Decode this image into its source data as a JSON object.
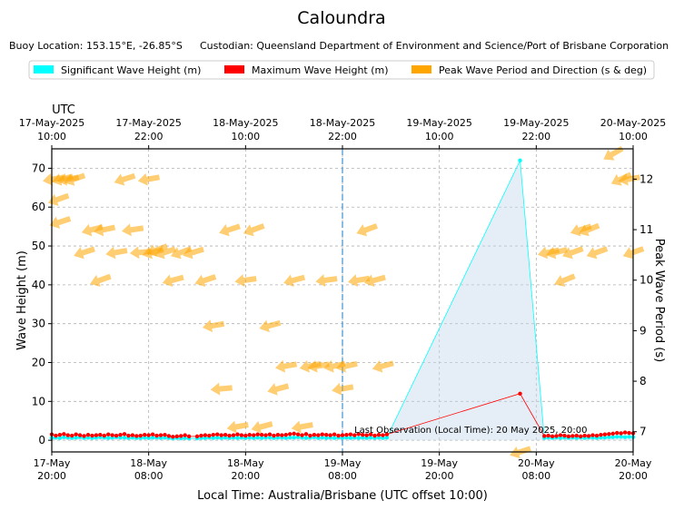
{
  "chart_data": {
    "type": "line",
    "title": "Caloundra",
    "subtitle_location": "Buoy Location: 153.15°E, -26.85°S",
    "subtitle_custodian": "Custodian: Queensland Department of Environment and Science/Port of Brisbane Corporation",
    "legend": [
      {
        "label": "Significant Wave Height (m)",
        "color": "#00ffff"
      },
      {
        "label": "Maximum Wave Height (m)",
        "color": "#ff0000"
      },
      {
        "label": "Peak Wave Period and Direction (s & deg)",
        "color": "#ffa500"
      }
    ],
    "xlabel": "Local Time: Australia/Brisbane (UTC offset 10:00)",
    "ylabel": "Wave Height (m)",
    "y2label": "Peak Wave Period (s)",
    "utc_label": "UTC",
    "x_range_hours": [
      0,
      72
    ],
    "ylim": [
      -3,
      75
    ],
    "y2lim": [
      6.6,
      12.6
    ],
    "yticks": [
      0,
      10,
      20,
      30,
      40,
      50,
      60,
      70
    ],
    "y2ticks": [
      7,
      8,
      9,
      10,
      11,
      12
    ],
    "bottom_ticks": [
      {
        "h": 0,
        "line1": "17-May",
        "line2": "20:00"
      },
      {
        "h": 12,
        "line1": "18-May",
        "line2": "08:00"
      },
      {
        "h": 24,
        "line1": "18-May",
        "line2": "20:00"
      },
      {
        "h": 36,
        "line1": "19-May",
        "line2": "08:00"
      },
      {
        "h": 48,
        "line1": "19-May",
        "line2": "20:00"
      },
      {
        "h": 60,
        "line1": "20-May",
        "line2": "08:00"
      },
      {
        "h": 72,
        "line1": "20-May",
        "line2": "20:00"
      }
    ],
    "top_ticks": [
      {
        "h": 0,
        "line1": "17-May-2025",
        "line2": "10:00"
      },
      {
        "h": 12,
        "line1": "17-May-2025",
        "line2": "22:00"
      },
      {
        "h": 24,
        "line1": "18-May-2025",
        "line2": "10:00"
      },
      {
        "h": 36,
        "line1": "18-May-2025",
        "line2": "22:00"
      },
      {
        "h": 48,
        "line1": "19-May-2025",
        "line2": "10:00"
      },
      {
        "h": 60,
        "line1": "19-May-2025",
        "line2": "22:00"
      },
      {
        "h": 72,
        "line1": "20-May-2025",
        "line2": "10:00"
      }
    ],
    "midnight_marker_h": 36,
    "last_observation_text": "Last Observation (Local Time): 20 May 2025, 20:00",
    "last_observation_h": 39.5,
    "last_observation_y": 1.2,
    "hsig": {
      "hours": [
        0.0,
        0.5,
        1.0,
        1.5,
        2.0,
        2.5,
        3.0,
        3.5,
        4.0,
        4.5,
        5.0,
        5.5,
        6.0,
        6.5,
        7.0,
        7.5,
        8.0,
        8.5,
        9.0,
        9.5,
        10.0,
        10.5,
        11.0,
        11.5,
        12.0,
        12.5,
        13.0,
        13.5,
        14.0,
        14.5,
        15.0,
        15.5,
        16.0,
        16.5,
        17.0,
        18.0,
        18.5,
        19.0,
        19.5,
        20.0,
        20.5,
        21.0,
        21.5,
        22.0,
        22.5,
        23.0,
        23.5,
        24.0,
        24.5,
        25.0,
        25.5,
        26.0,
        26.5,
        27.0,
        27.5,
        28.0,
        28.5,
        29.0,
        29.5,
        30.0,
        30.5,
        31.0,
        31.5,
        32.0,
        32.5,
        33.0,
        33.5,
        34.0,
        34.5,
        35.0,
        35.5,
        36.0,
        36.5,
        37.0,
        37.5,
        38.0,
        38.5,
        39.0,
        39.5,
        40.0,
        40.5,
        41.0,
        41.5,
        58.0,
        61.0,
        61.5,
        62.0,
        62.5,
        63.0,
        63.5,
        64.0,
        64.5,
        65.0,
        65.5,
        66.0,
        66.5,
        67.0,
        67.5,
        68.0,
        68.5,
        69.0,
        69.5,
        70.0,
        70.5,
        71.0,
        71.5,
        72.0
      ],
      "values": [
        0.6,
        0.7,
        0.6,
        0.8,
        0.7,
        0.6,
        0.7,
        0.8,
        0.6,
        0.7,
        0.6,
        0.7,
        0.8,
        0.7,
        0.6,
        0.7,
        0.8,
        0.7,
        0.7,
        0.6,
        0.7,
        0.6,
        0.6,
        0.7,
        0.6,
        0.7,
        0.7,
        0.6,
        0.7,
        0.6,
        0.5,
        0.6,
        0.5,
        0.6,
        0.5,
        0.5,
        0.6,
        0.6,
        0.7,
        0.6,
        0.7,
        0.6,
        0.7,
        0.6,
        0.7,
        0.6,
        0.7,
        0.6,
        0.7,
        0.6,
        0.7,
        0.6,
        0.7,
        0.7,
        0.6,
        0.7,
        0.7,
        0.6,
        0.7,
        0.7,
        0.8,
        0.7,
        0.6,
        0.7,
        0.8,
        0.6,
        0.7,
        0.6,
        0.7,
        0.6,
        0.7,
        0.6,
        0.7,
        0.6,
        0.7,
        0.6,
        0.7,
        0.6,
        0.7,
        0.6,
        0.7,
        0.6,
        0.7,
        72.0,
        0.6,
        0.7,
        0.6,
        0.7,
        0.6,
        0.7,
        0.6,
        0.7,
        0.6,
        0.7,
        0.6,
        0.7,
        0.7,
        0.6,
        0.7,
        0.7,
        0.8,
        0.8,
        0.9,
        0.9,
        0.8,
        0.9,
        0.8
      ]
    },
    "hmax": {
      "hours": [
        0.0,
        0.5,
        1.0,
        1.5,
        2.0,
        2.5,
        3.0,
        3.5,
        4.0,
        4.5,
        5.0,
        5.5,
        6.0,
        6.5,
        7.0,
        7.5,
        8.0,
        8.5,
        9.0,
        9.5,
        10.0,
        10.5,
        11.0,
        11.5,
        12.0,
        12.5,
        13.0,
        13.5,
        14.0,
        14.5,
        15.0,
        15.5,
        16.0,
        16.5,
        17.0,
        18.0,
        18.5,
        19.0,
        19.5,
        20.0,
        20.5,
        21.0,
        21.5,
        22.0,
        22.5,
        23.0,
        23.5,
        24.0,
        24.5,
        25.0,
        25.5,
        26.0,
        26.5,
        27.0,
        27.5,
        28.0,
        28.5,
        29.0,
        29.5,
        30.0,
        30.5,
        31.0,
        31.5,
        32.0,
        32.5,
        33.0,
        33.5,
        34.0,
        34.5,
        35.0,
        35.5,
        36.0,
        36.5,
        37.0,
        37.5,
        38.0,
        38.5,
        39.0,
        39.5,
        40.0,
        40.5,
        41.0,
        41.5,
        58.0,
        61.0,
        61.5,
        62.0,
        62.5,
        63.0,
        63.5,
        64.0,
        64.5,
        65.0,
        65.5,
        66.0,
        66.5,
        67.0,
        67.5,
        68.0,
        68.5,
        69.0,
        69.5,
        70.0,
        70.5,
        71.0,
        71.5,
        72.0
      ],
      "values": [
        1.5,
        1.2,
        1.4,
        1.6,
        1.3,
        1.2,
        1.5,
        1.3,
        1.1,
        1.4,
        1.2,
        1.3,
        1.4,
        1.2,
        1.5,
        1.3,
        1.2,
        1.4,
        1.6,
        1.2,
        1.3,
        1.1,
        1.2,
        1.4,
        1.3,
        1.5,
        1.2,
        1.3,
        1.4,
        1.1,
        0.9,
        1.0,
        1.1,
        1.3,
        1.0,
        1.0,
        1.2,
        1.3,
        1.2,
        1.4,
        1.5,
        1.3,
        1.4,
        1.2,
        1.3,
        1.5,
        1.3,
        1.2,
        1.4,
        1.3,
        1.5,
        1.4,
        1.3,
        1.5,
        1.2,
        1.4,
        1.3,
        1.4,
        1.6,
        1.7,
        1.5,
        1.3,
        1.6,
        1.2,
        1.4,
        1.3,
        1.5,
        1.4,
        1.3,
        1.5,
        1.2,
        1.3,
        1.4,
        1.5,
        1.3,
        1.6,
        1.4,
        1.3,
        1.5,
        1.2,
        1.4,
        1.3,
        1.5,
        12.0,
        1.1,
        1.2,
        1.0,
        1.1,
        1.3,
        1.2,
        1.0,
        1.1,
        1.2,
        1.0,
        1.2,
        1.1,
        1.3,
        1.2,
        1.4,
        1.5,
        1.6,
        1.7,
        1.9,
        1.8,
        2.0,
        1.9,
        1.8
      ]
    },
    "peak_period": [
      {
        "h": 0.2,
        "tp": 12.0,
        "dir": 80
      },
      {
        "h": 0.8,
        "tp": 11.6,
        "dir": 70
      },
      {
        "h": 1.0,
        "tp": 11.15,
        "dir": 72
      },
      {
        "h": 1.3,
        "tp": 12.0,
        "dir": 75
      },
      {
        "h": 2.0,
        "tp": 12.0,
        "dir": 80
      },
      {
        "h": 2.8,
        "tp": 12.0,
        "dir": 70
      },
      {
        "h": 4.0,
        "tp": 10.55,
        "dir": 72
      },
      {
        "h": 5.0,
        "tp": 11.0,
        "dir": 75
      },
      {
        "h": 6.0,
        "tp": 10.0,
        "dir": 70
      },
      {
        "h": 6.5,
        "tp": 11.0,
        "dir": 78
      },
      {
        "h": 8.0,
        "tp": 10.55,
        "dir": 80
      },
      {
        "h": 9.0,
        "tp": 12.0,
        "dir": 72
      },
      {
        "h": 10.0,
        "tp": 11.0,
        "dir": 82
      },
      {
        "h": 11.0,
        "tp": 10.55,
        "dir": 85
      },
      {
        "h": 12.0,
        "tp": 12.0,
        "dir": 80
      },
      {
        "h": 12.5,
        "tp": 10.55,
        "dir": 75
      },
      {
        "h": 13.0,
        "tp": 10.6,
        "dir": 70
      },
      {
        "h": 14.0,
        "tp": 10.55,
        "dir": 72
      },
      {
        "h": 15.0,
        "tp": 10.0,
        "dir": 75
      },
      {
        "h": 16.0,
        "tp": 10.55,
        "dir": 70
      },
      {
        "h": 17.5,
        "tp": 10.55,
        "dir": 73
      },
      {
        "h": 19.0,
        "tp": 10.0,
        "dir": 72
      },
      {
        "h": 20.0,
        "tp": 9.1,
        "dir": 80
      },
      {
        "h": 21.0,
        "tp": 7.85,
        "dir": 85
      },
      {
        "h": 22.0,
        "tp": 11.0,
        "dir": 72
      },
      {
        "h": 23.0,
        "tp": 7.1,
        "dir": 80
      },
      {
        "h": 24.0,
        "tp": 10.0,
        "dir": 82
      },
      {
        "h": 25.0,
        "tp": 11.0,
        "dir": 70
      },
      {
        "h": 26.0,
        "tp": 7.1,
        "dir": 75
      },
      {
        "h": 27.0,
        "tp": 9.1,
        "dir": 75
      },
      {
        "h": 28.0,
        "tp": 7.85,
        "dir": 75
      },
      {
        "h": 29.0,
        "tp": 8.3,
        "dir": 80
      },
      {
        "h": 30.0,
        "tp": 10.0,
        "dir": 75
      },
      {
        "h": 31.0,
        "tp": 7.1,
        "dir": 80
      },
      {
        "h": 32.0,
        "tp": 8.3,
        "dir": 78
      },
      {
        "h": 33.0,
        "tp": 8.3,
        "dir": 80
      },
      {
        "h": 34.0,
        "tp": 10.0,
        "dir": 82
      },
      {
        "h": 35.0,
        "tp": 8.3,
        "dir": 78
      },
      {
        "h": 36.0,
        "tp": 7.85,
        "dir": 80
      },
      {
        "h": 36.5,
        "tp": 8.3,
        "dir": 78
      },
      {
        "h": 38.0,
        "tp": 10.0,
        "dir": 80
      },
      {
        "h": 39.0,
        "tp": 11.0,
        "dir": 70
      },
      {
        "h": 40.0,
        "tp": 10.0,
        "dir": 75
      },
      {
        "h": 41.0,
        "tp": 8.3,
        "dir": 75
      },
      {
        "h": 58.0,
        "tp": 6.6,
        "dir": 72
      },
      {
        "h": 61.5,
        "tp": 10.55,
        "dir": 78
      },
      {
        "h": 62.5,
        "tp": 10.55,
        "dir": 75
      },
      {
        "h": 63.5,
        "tp": 10.0,
        "dir": 68
      },
      {
        "h": 64.5,
        "tp": 10.55,
        "dir": 70
      },
      {
        "h": 65.5,
        "tp": 11.0,
        "dir": 72
      },
      {
        "h": 66.5,
        "tp": 11.0,
        "dir": 68
      },
      {
        "h": 67.5,
        "tp": 10.55,
        "dir": 70
      },
      {
        "h": 69.5,
        "tp": 12.5,
        "dir": 60
      },
      {
        "h": 70.5,
        "tp": 12.0,
        "dir": 65
      },
      {
        "h": 71.5,
        "tp": 12.0,
        "dir": 80
      },
      {
        "h": 72.0,
        "tp": 10.55,
        "dir": 70
      }
    ]
  }
}
